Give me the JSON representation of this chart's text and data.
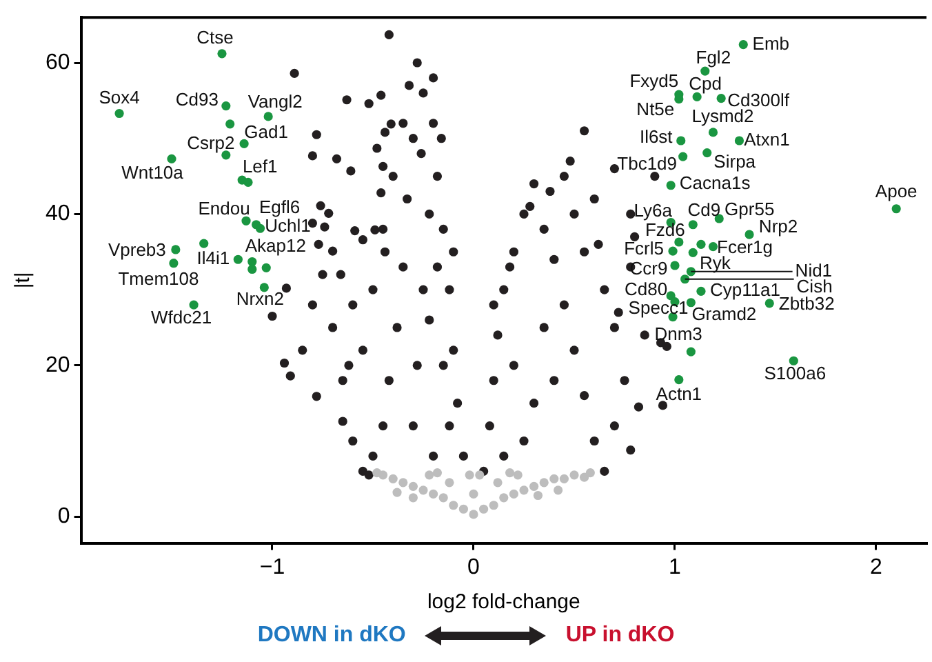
{
  "chart_data": {
    "type": "scatter",
    "xlabel": "log2 fold-change",
    "ylabel": "|t|",
    "xlim": [
      -1.95,
      2.25
    ],
    "ylim": [
      -3.5,
      66
    ],
    "xticks": [
      {
        "value": -1,
        "label": "−1"
      },
      0,
      1,
      2
    ],
    "yticks": [
      0,
      20,
      40,
      60
    ],
    "marker": "circle",
    "legend": false,
    "grid": false,
    "series": [
      {
        "color": "#bdbdbd",
        "x": [
          0,
          -0.05,
          0.05,
          -0.1,
          0.1,
          -0.15,
          0.15,
          -0.2,
          0.2,
          -0.25,
          0.25,
          -0.3,
          0.3,
          -0.35,
          0.35,
          -0.4,
          0.4,
          -0.45,
          0.45,
          -0.48,
          0.5,
          0.55,
          0.58,
          -0.12,
          0.12,
          -0.22,
          0.22,
          -0.3,
          0.32,
          0,
          -0.02,
          0.03,
          -0.38,
          0.42,
          -0.18,
          0.18
        ],
        "values": [
          0.3,
          1,
          1,
          1.5,
          1.5,
          2.5,
          2.5,
          3,
          3,
          3.5,
          3.5,
          4,
          4,
          4.5,
          4.5,
          5,
          5,
          5.5,
          5,
          5.8,
          5.5,
          5.2,
          5.8,
          4.5,
          4.5,
          5.5,
          5.5,
          2.5,
          2.8,
          3,
          5.5,
          5.5,
          3.2,
          3.5,
          5.8,
          5.8
        ]
      },
      {
        "color": "#231f20",
        "x": [
          -0.05,
          -0.08,
          -0.1,
          -0.12,
          -0.15,
          -0.18,
          -0.2,
          -0.25,
          -0.3,
          -0.33,
          -0.35,
          -0.38,
          -0.42,
          -0.45,
          -0.5,
          -0.55,
          -0.6,
          -0.65,
          -0.7,
          -0.6,
          -0.55,
          -0.5,
          -0.45,
          -0.4,
          -0.35,
          -0.28,
          -0.42,
          -0.22,
          -0.25,
          -0.28,
          -0.3,
          -0.2,
          -0.15,
          -0.22,
          -0.18,
          -0.12,
          -0.85,
          -0.8,
          -0.75,
          -0.62,
          -0.89,
          -0.63,
          -0.52,
          -0.46,
          -0.41,
          -0.78,
          -0.44,
          -0.8,
          -0.68,
          -0.48,
          -0.61,
          -0.45,
          -0.46,
          -0.76,
          -0.72,
          -0.8,
          -0.74,
          -0.59,
          -0.49,
          -0.55,
          -0.77,
          -0.7,
          -0.44,
          -0.66,
          -0.93,
          -1.0,
          -0.94,
          -0.91,
          -0.78,
          -0.65,
          -0.52,
          -0.32,
          -0.26,
          -0.2,
          -0.16,
          -0.1,
          0.05,
          0.08,
          0.1,
          0.12,
          0.15,
          0.2,
          0.25,
          0.3,
          0.35,
          0.4,
          0.45,
          0.5,
          0.55,
          0.6,
          0.65,
          0.7,
          0.75,
          0.7,
          0.65,
          0.55,
          0.5,
          0.45,
          0.55,
          0.2,
          0.3,
          0.25,
          0.35,
          0.4,
          0.15,
          0.72,
          0.78,
          0.8,
          0.93,
          0.85,
          0.6,
          0.7,
          0.62,
          0.78,
          0.9,
          0.78,
          0.94,
          0.82,
          0.96,
          0.1,
          0.18,
          0.28,
          0.38,
          0.48
        ],
        "values": [
          8,
          15,
          22,
          30,
          38,
          45,
          52,
          56,
          50,
          42,
          33,
          25,
          18,
          12,
          8,
          6,
          10,
          18,
          25,
          28,
          22,
          30,
          38,
          45,
          52,
          60,
          63.7,
          40,
          30,
          20,
          12,
          8,
          20,
          26,
          33,
          12,
          22,
          28,
          32,
          20,
          58.6,
          55.1,
          54.6,
          55.7,
          51.9,
          50.5,
          50.8,
          47.7,
          47.3,
          48.7,
          45.7,
          46.3,
          42.8,
          41.1,
          40.1,
          38.8,
          38.3,
          37.8,
          37.9,
          36.6,
          36,
          35.1,
          35,
          32,
          30.2,
          26.5,
          20.3,
          18.6,
          15.9,
          12.6,
          5.5,
          57,
          48,
          58,
          50,
          35,
          6,
          12,
          18,
          24,
          30,
          35,
          40,
          44,
          38,
          34,
          28,
          22,
          16,
          10,
          6,
          12,
          18,
          25,
          30,
          35,
          40,
          45,
          51,
          20,
          15,
          10,
          25,
          18,
          8,
          27,
          33,
          37,
          23,
          24,
          42,
          46,
          36,
          40,
          45,
          8.8,
          14.7,
          14.5,
          22.5,
          28,
          33,
          41,
          43,
          47
        ]
      },
      {
        "color": "#1a9641",
        "x": [
          -1.25,
          -1.76,
          -1.23,
          -1.21,
          -1.02,
          -1.14,
          -1.23,
          -1.5,
          -1.15,
          -1.12,
          -1.13,
          -1.08,
          -1.06,
          -1.48,
          -1.49,
          -1.34,
          -1.17,
          -1.1,
          -1.1,
          -1.03,
          -1.04,
          -1.39,
          1.34,
          1.15,
          1.02,
          1.02,
          1.11,
          1.23,
          1.19,
          1.03,
          1.32,
          1.04,
          1.16,
          0.98,
          2.1,
          0.98,
          1.09,
          1.22,
          1.37,
          1.02,
          1.19,
          1.13,
          0.99,
          1.09,
          1.0,
          1.08,
          1.05,
          1.13,
          0.98,
          1.0,
          1.08,
          1.47,
          0.99,
          1.08,
          1.59,
          1.02
        ],
        "values": [
          61.2,
          53.3,
          54.3,
          51.9,
          52.9,
          49.3,
          47.8,
          47.3,
          44.5,
          44.2,
          39.1,
          38.6,
          38.1,
          35.3,
          33.5,
          36.1,
          34,
          33.7,
          32.7,
          32.9,
          30.3,
          28,
          62.4,
          58.9,
          55.8,
          55.2,
          55.5,
          55.3,
          50.8,
          49.7,
          49.7,
          47.6,
          48.1,
          43.8,
          40.7,
          38.9,
          38.6,
          39.4,
          37.3,
          36.3,
          35.7,
          36,
          35.1,
          34.9,
          33.2,
          32.4,
          31.4,
          29.8,
          29.2,
          28.4,
          28.3,
          28.2,
          26.4,
          21.8,
          20.6,
          18.1
        ]
      }
    ],
    "annotations": [
      {
        "text": "Ctse",
        "x": -1.25,
        "y": 61.2
      },
      {
        "text": "Sox4",
        "x": -1.76,
        "y": 53.3
      },
      {
        "text": "Cd93",
        "x": -1.23,
        "y": 54.3
      },
      {
        "text": "Vangl2",
        "x": -1.02,
        "y": 52.9
      },
      {
        "text": "Gad1",
        "x": -1.14,
        "y": 49.3
      },
      {
        "text": "Csrp2",
        "x": -1.23,
        "y": 47.8
      },
      {
        "text": "Wnt10a",
        "x": -1.5,
        "y": 47.3
      },
      {
        "text": "Lef1",
        "x": -1.15,
        "y": 44.5
      },
      {
        "text": "Endou",
        "x": -1.13,
        "y": 39.1
      },
      {
        "text": "Egfl6",
        "x": -1.08,
        "y": 38.6
      },
      {
        "text": "Uchl1",
        "x": -1.06,
        "y": 38.1
      },
      {
        "text": "Vpreb3",
        "x": -1.48,
        "y": 35.3
      },
      {
        "text": "Tmem108",
        "x": -1.49,
        "y": 33.5
      },
      {
        "text": "Il4i1",
        "x": -1.17,
        "y": 34
      },
      {
        "text": "Akap12",
        "x": -1.1,
        "y": 33.7
      },
      {
        "text": "Nrxn2",
        "x": -1.04,
        "y": 30.3
      },
      {
        "text": "Wfdc21",
        "x": -1.39,
        "y": 28
      },
      {
        "text": "Emb",
        "x": 1.34,
        "y": 62.4
      },
      {
        "text": "Fgl2",
        "x": 1.15,
        "y": 58.9
      },
      {
        "text": "Fxyd5",
        "x": 1.02,
        "y": 55.8
      },
      {
        "text": "Nt5e",
        "x": 1.02,
        "y": 55.2
      },
      {
        "text": "Cpd",
        "x": 1.11,
        "y": 55.5
      },
      {
        "text": "Cd300lf",
        "x": 1.23,
        "y": 55.3
      },
      {
        "text": "Lysmd2",
        "x": 1.19,
        "y": 50.8
      },
      {
        "text": "Il6st",
        "x": 1.03,
        "y": 49.7
      },
      {
        "text": "Atxn1",
        "x": 1.32,
        "y": 49.7
      },
      {
        "text": "Tbc1d9",
        "x": 1.04,
        "y": 47.6
      },
      {
        "text": "Sirpa",
        "x": 1.16,
        "y": 48.1
      },
      {
        "text": "Cacna1s",
        "x": 0.98,
        "y": 43.8
      },
      {
        "text": "Apoe",
        "x": 2.1,
        "y": 40.7
      },
      {
        "text": "Ly6a",
        "x": 0.98,
        "y": 38.9
      },
      {
        "text": "Cd9",
        "x": 1.09,
        "y": 38.6
      },
      {
        "text": "Gpr55",
        "x": 1.22,
        "y": 39.4
      },
      {
        "text": "Nrp2",
        "x": 1.37,
        "y": 37.3
      },
      {
        "text": "Fzd6",
        "x": 1.02,
        "y": 36.3
      },
      {
        "text": "Fcer1g",
        "x": 1.19,
        "y": 35.7
      },
      {
        "text": "Fcrl5",
        "x": 0.99,
        "y": 35.1
      },
      {
        "text": "Ryk",
        "x": 1.09,
        "y": 34.9
      },
      {
        "text": "Ccr9",
        "x": 1.0,
        "y": 33.2
      },
      {
        "text": "Nid1",
        "x": 1.08,
        "y": 32.4
      },
      {
        "text": "Cish",
        "x": 1.05,
        "y": 31.4
      },
      {
        "text": "Cyp11a1",
        "x": 1.13,
        "y": 29.8
      },
      {
        "text": "Cd80",
        "x": 0.98,
        "y": 29.2
      },
      {
        "text": "Specc1",
        "x": 1.0,
        "y": 28.4
      },
      {
        "text": "Gramd2",
        "x": 1.08,
        "y": 28.3
      },
      {
        "text": "Zbtb32",
        "x": 1.47,
        "y": 28.2
      },
      {
        "text": "Dnm3",
        "x": 0.99,
        "y": 26.4
      },
      {
        "text": "S100a6",
        "x": 1.59,
        "y": 20.6
      },
      {
        "text": "Actn1",
        "x": 1.02,
        "y": 18.1
      },
      "DOWN in dKO",
      "UP in dKO"
    ]
  }
}
